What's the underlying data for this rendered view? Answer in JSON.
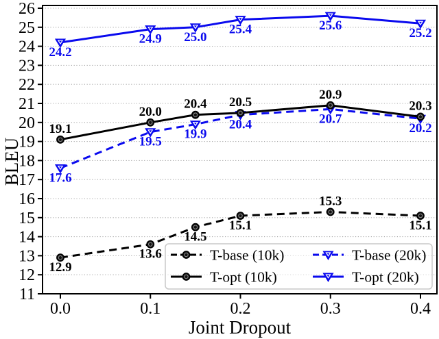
{
  "chart_data": {
    "type": "line",
    "title": "",
    "xlabel": "Joint Dropout",
    "ylabel": "BLEU",
    "x": [
      0.0,
      0.1,
      0.15,
      0.2,
      0.3,
      0.4
    ],
    "xticks": [
      "0.0",
      "0.1",
      "0.2",
      "0.3",
      "0.4"
    ],
    "xtick_values": [
      0.0,
      0.1,
      0.2,
      0.3,
      0.4
    ],
    "ylim": [
      11,
      26
    ],
    "yticks": [
      11,
      12,
      13,
      14,
      15,
      16,
      17,
      18,
      19,
      20,
      21,
      22,
      23,
      24,
      25,
      26
    ],
    "grid": "horizontal-dotted",
    "legend_position": "lower-right-inside",
    "colors": {
      "black_series": "#000000",
      "blue_series": "#0a0aee",
      "grid": "#aaaaaa",
      "legend_border": "#c9c9c9"
    },
    "series": [
      {
        "name": "T-base (10k)",
        "color": "#000000",
        "line_style": "dashed",
        "marker": "circle",
        "values": [
          12.9,
          13.6,
          14.5,
          15.1,
          15.3,
          15.1
        ],
        "label_sides": [
          "below",
          "below",
          "below",
          "below",
          "above",
          "below"
        ]
      },
      {
        "name": "T-opt (10k)",
        "color": "#000000",
        "line_style": "solid",
        "marker": "circle",
        "values": [
          19.1,
          20.0,
          20.4,
          20.5,
          20.9,
          20.3
        ],
        "label_sides": [
          "above",
          "above",
          "above",
          "above",
          "above",
          "above"
        ]
      },
      {
        "name": "T-base (20k)",
        "color": "#0a0aee",
        "line_style": "dashed",
        "marker": "triangle-down",
        "values": [
          17.6,
          19.5,
          19.9,
          20.4,
          20.7,
          20.2
        ],
        "label_sides": [
          "below",
          "below",
          "below",
          "below",
          "below",
          "below"
        ]
      },
      {
        "name": "T-opt (20k)",
        "color": "#0a0aee",
        "line_style": "solid",
        "marker": "triangle-down",
        "values": [
          24.2,
          24.9,
          25.0,
          25.4,
          25.6,
          25.2
        ],
        "label_sides": [
          "below",
          "below",
          "below",
          "below",
          "below",
          "below"
        ]
      }
    ],
    "value_label_format": "0.1f"
  }
}
